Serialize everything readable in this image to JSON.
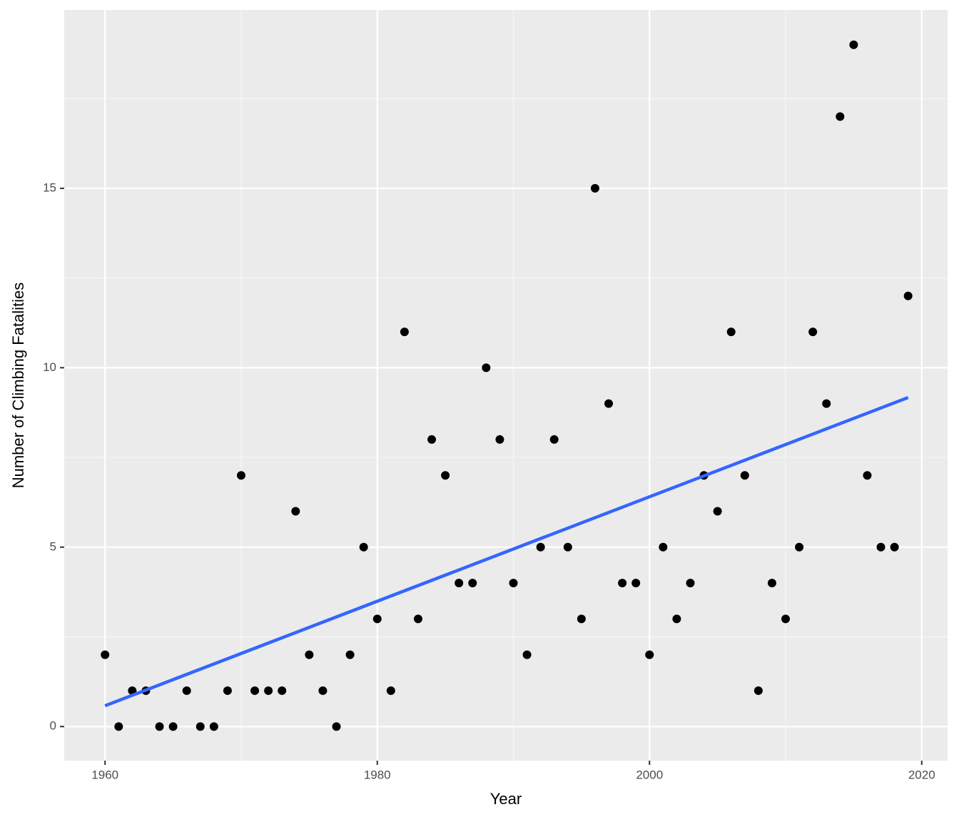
{
  "chart_data": {
    "type": "scatter",
    "x_label": "Year",
    "y_label": "Number of Climbing Fatalities",
    "x": [
      1960,
      1961,
      1962,
      1963,
      1964,
      1965,
      1966,
      1967,
      1968,
      1969,
      1970,
      1971,
      1972,
      1973,
      1974,
      1975,
      1976,
      1977,
      1978,
      1979,
      1980,
      1981,
      1982,
      1983,
      1984,
      1985,
      1986,
      1987,
      1988,
      1989,
      1990,
      1991,
      1992,
      1993,
      1994,
      1995,
      1996,
      1997,
      1998,
      1999,
      2000,
      2001,
      2002,
      2003,
      2004,
      2005,
      2006,
      2007,
      2008,
      2009,
      2010,
      2011,
      2012,
      2013,
      2014,
      2015,
      2016,
      2017,
      2018,
      2019
    ],
    "values": [
      2,
      0,
      1,
      1,
      0,
      0,
      1,
      0,
      0,
      1,
      7,
      1,
      1,
      1,
      6,
      2,
      1,
      0,
      2,
      5,
      3,
      1,
      11,
      3,
      8,
      7,
      4,
      4,
      10,
      8,
      4,
      2,
      5,
      8,
      5,
      3,
      15,
      9,
      4,
      4,
      2,
      5,
      3,
      4,
      7,
      6,
      11,
      7,
      1,
      4,
      3,
      5,
      11,
      9,
      17,
      19,
      7,
      5,
      5,
      12
    ],
    "color": "#000000",
    "trend": {
      "x": [
        1960,
        2019
      ],
      "values": [
        0.58,
        9.17
      ],
      "color": "#3366ff"
    },
    "xlim": [
      1957.0,
      2021.9
    ],
    "ylim": [
      -0.95,
      19.97
    ],
    "xticks": [
      1960,
      1980,
      2000,
      2020
    ],
    "yticks": [
      0,
      5,
      10,
      15
    ],
    "x_minor_grid": [
      1970,
      1990,
      2010
    ],
    "y_minor_grid": [
      2.5,
      7.5,
      12.5,
      17.5
    ],
    "grid": true
  }
}
